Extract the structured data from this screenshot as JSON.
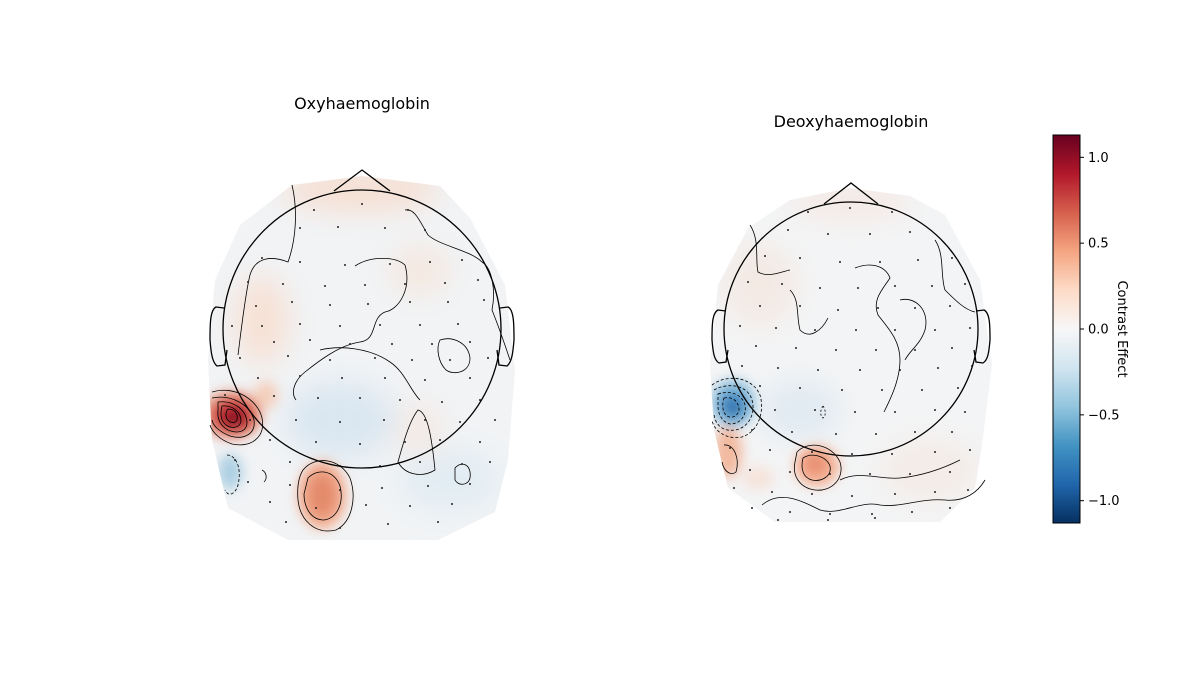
{
  "chart_data": [
    {
      "type": "heatmap",
      "subtype": "topomap",
      "title": "Oxyhaemoglobin",
      "blobs": [
        {
          "label": "left-temporal",
          "value": 1.15
        },
        {
          "label": "left-occipital-low",
          "value": -0.35
        },
        {
          "label": "occipital-midline-left",
          "value": 0.55
        },
        {
          "label": "frontal-left",
          "value": 0.15
        },
        {
          "label": "frontal-top",
          "value": 0.1
        },
        {
          "label": "parietal-center",
          "value": -0.15
        }
      ]
    },
    {
      "type": "heatmap",
      "subtype": "topomap",
      "title": "Deoxyhaemoglobin",
      "blobs": [
        {
          "label": "left-temporal",
          "value": -0.75
        },
        {
          "label": "left-occipital-low",
          "value": 0.35
        },
        {
          "label": "occipital-midline-left",
          "value": 0.5
        },
        {
          "label": "parietal-center",
          "value": -0.1
        }
      ]
    }
  ],
  "colorbar": {
    "label": "Contrast Effect",
    "cmap": "RdBu_r",
    "vmin": -1.13,
    "vmax": 1.13,
    "ticks": [
      1.0,
      0.5,
      0.0,
      -0.5,
      -1.0
    ],
    "tick_labels": [
      "1.0",
      "0.5",
      "0.0",
      "−0.5",
      "−1.0"
    ]
  }
}
